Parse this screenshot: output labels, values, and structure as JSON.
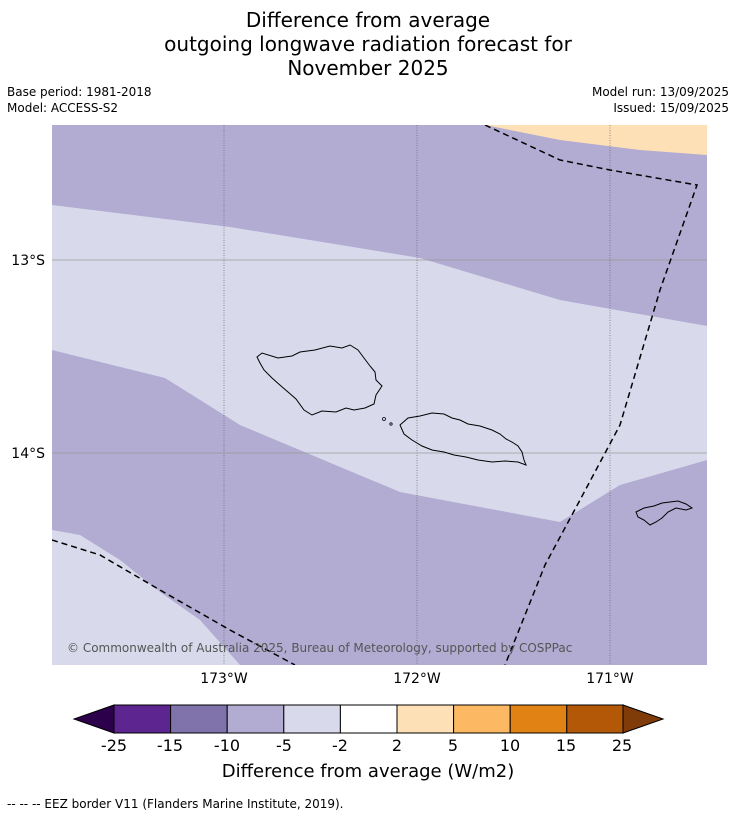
{
  "title": {
    "line1": "Difference from average",
    "line2": "outgoing longwave radiation forecast for",
    "line3": "November 2025"
  },
  "meta": {
    "base_period": "Base period: 1981-2018",
    "model": "Model: ACCESS-S2",
    "model_run": "Model run: 13/09/2025",
    "issued": "Issued: 15/09/2025"
  },
  "map": {
    "lat_labels": [
      "13°S",
      "14°S"
    ],
    "lon_labels": [
      "173°W",
      "172°W",
      "171°W"
    ],
    "credit": "© Commonwealth of Australia 2025, Bureau of Meteorology, supported by COSPPac"
  },
  "colorbar": {
    "tick_labels": [
      "-25",
      "-15",
      "-10",
      "-5",
      "-2",
      "2",
      "5",
      "10",
      "15",
      "25"
    ],
    "colors": [
      "#2d004b",
      "#5d2590",
      "#8073ac",
      "#b2abd2",
      "#d8daeb",
      "#ffffff",
      "#fee0b6",
      "#fdb863",
      "#e08214",
      "#b35806",
      "#7f3b08"
    ],
    "title": "Difference from average (W/m2)"
  },
  "footnote": "--  --  -- EEZ border V11 (Flanders Marine Institute, 2019)."
}
